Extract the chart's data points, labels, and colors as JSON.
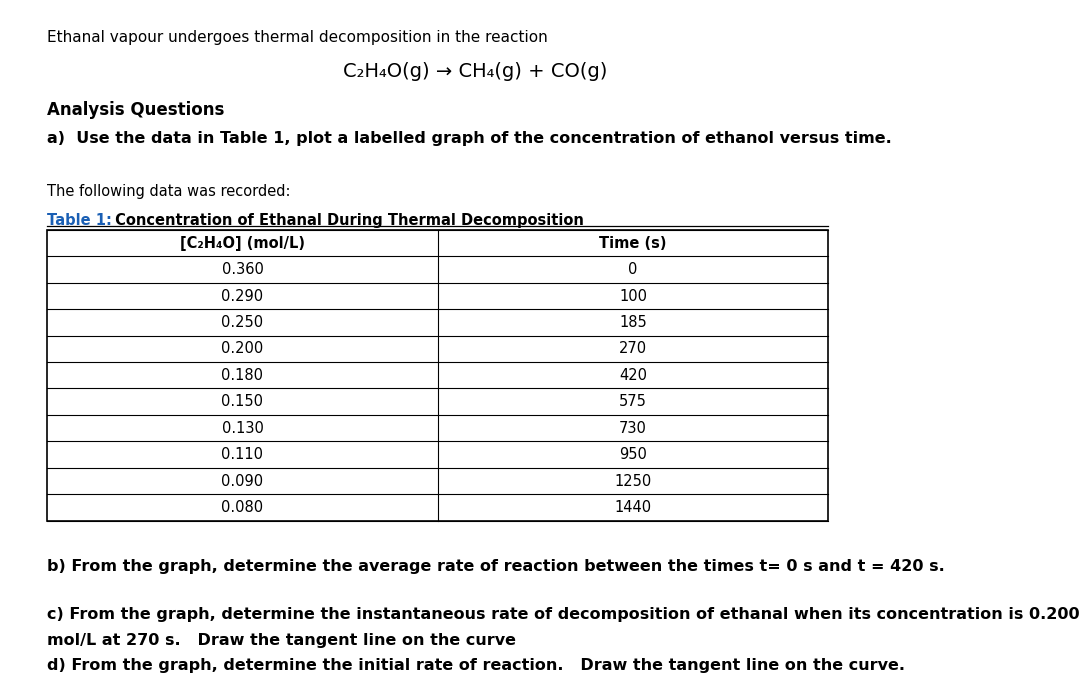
{
  "title_line1": "Ethanal vapour undergoes thermal decomposition in the reaction",
  "title_line2": "C₂H₄O(g) → CH₄(g) + CO(g)",
  "analysis_header": "Analysis Questions",
  "question_a": "a)  Use the data in Table 1, plot a labelled graph of the concentration of ethanol versus time.",
  "data_intro": "The following data was recorded:",
  "table_title_bold": "Table 1:",
  "table_title_rest": " Concentration of Ethanal During Thermal Decomposition",
  "col1_header": "[C₂H₄O] (mol/L)",
  "col2_header": "Time (s)",
  "concentrations": [
    0.36,
    0.29,
    0.25,
    0.2,
    0.18,
    0.15,
    0.13,
    0.11,
    0.09,
    0.08
  ],
  "times": [
    0,
    100,
    185,
    270,
    420,
    575,
    730,
    950,
    1250,
    1440
  ],
  "question_b": "b) From the graph, determine the average rate of reaction between the times t= 0 s and t = 420 s.",
  "question_c1": "c) From the graph, determine the instantaneous rate of decomposition of ethanal when its concentration is 0.200",
  "question_c2": "mol/L at 270 s.   Draw the tangent line on the curve",
  "question_d": "d) From the graph, determine the initial rate of reaction.   Draw the tangent line on the curve.",
  "bg_color": "#ffffff",
  "text_color": "#000000",
  "table_border_color": "#000000",
  "blue_color": "#1a5fb4"
}
